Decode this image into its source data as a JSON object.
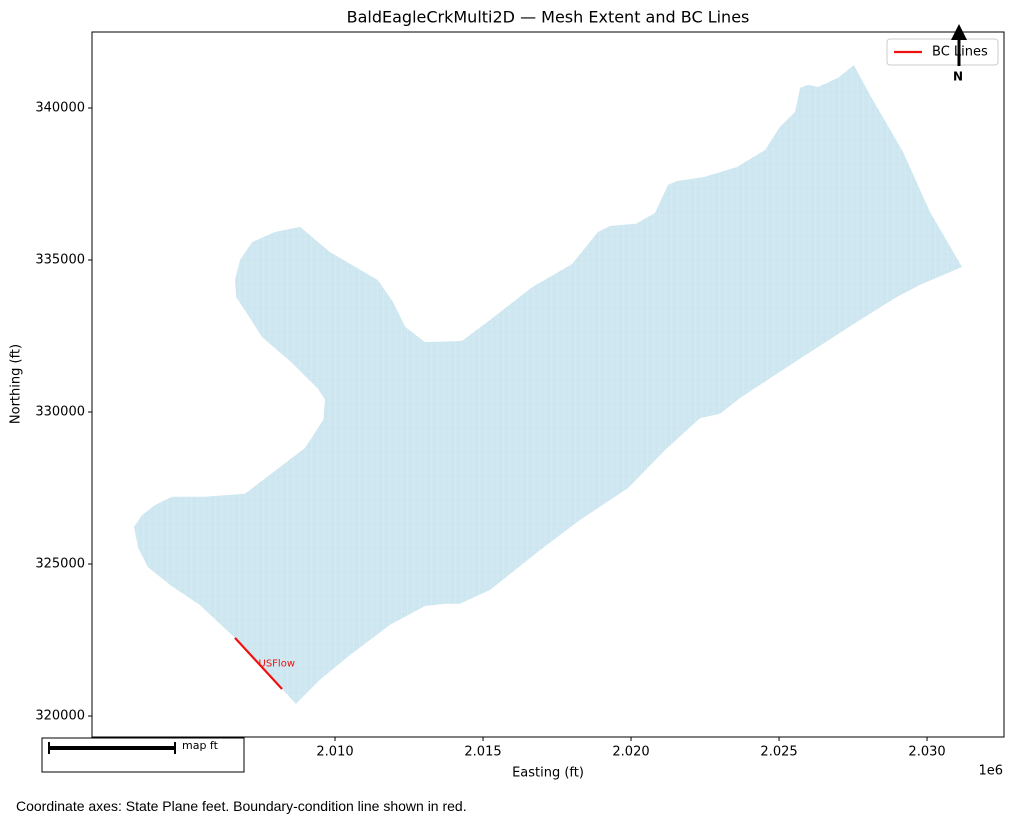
{
  "chart_data": {
    "type": "map",
    "title": "BaldEagleCrkMulti2D — Mesh Extent and BC Lines",
    "x_label": "Easting (ft)",
    "y_label": "Northing (ft)",
    "x_offset_label": "1e6",
    "xlim": [
      2001790,
      2032600
    ],
    "ylim": [
      319310,
      342500
    ],
    "xticks": [
      {
        "value": 2010000,
        "label": "2.010"
      },
      {
        "value": 2015000,
        "label": "2.015"
      },
      {
        "value": 2020000,
        "label": "2.020"
      },
      {
        "value": 2025000,
        "label": "2.025"
      },
      {
        "value": 2030000,
        "label": "2.030"
      }
    ],
    "yticks": [
      320000,
      325000,
      330000,
      335000,
      340000
    ],
    "mesh": {
      "color": "#cde6ef",
      "x": [
        2008680,
        2006620,
        2005440,
        2004430,
        2003680,
        2003350,
        2003210,
        2003480,
        2003920,
        2004490,
        2005610,
        2006960,
        2008990,
        2009600,
        2009660,
        2009430,
        2008510,
        2007530,
        2007060,
        2006660,
        2006620,
        2006790,
        2007200,
        2007970,
        2008820,
        2009830,
        2011450,
        2011960,
        2012370,
        2013040,
        2014290,
        2015240,
        2016660,
        2018010,
        2018880,
        2019290,
        2020170,
        2020810,
        2021250,
        2021550,
        2022470,
        2023580,
        2024530,
        2025030,
        2025540,
        2025710,
        2025980,
        2026320,
        2026990,
        2027530,
        2028070,
        2029190,
        2030100,
        2031180,
        2029760,
        2028920,
        2027740,
        2025540,
        2023680,
        2023010,
        2022330,
        2021150,
        2019900,
        2018280,
        2016930,
        2015240,
        2014220,
        2013720,
        2013040,
        2011860,
        2010510,
        2009490
      ],
      "y": [
        320400,
        322570,
        323650,
        324310,
        324900,
        325530,
        326220,
        326610,
        326940,
        327210,
        327210,
        327310,
        328820,
        329740,
        330400,
        330760,
        331650,
        332470,
        333190,
        333780,
        334340,
        335000,
        335590,
        335920,
        336090,
        335260,
        334340,
        333620,
        332800,
        332300,
        332340,
        333030,
        334110,
        334870,
        335920,
        336120,
        336190,
        336550,
        337470,
        337600,
        337730,
        338060,
        338620,
        339380,
        339870,
        340660,
        340760,
        340690,
        340990,
        341410,
        340430,
        338550,
        336580,
        334770,
        334180,
        333750,
        333030,
        331650,
        330460,
        329940,
        329800,
        328750,
        327500,
        326450,
        325460,
        324150,
        323690,
        323690,
        323620,
        323000,
        322010,
        321190
      ]
    },
    "bc_lines": {
      "name": "BC Lines",
      "color": "#ee1111",
      "lines": [
        {
          "label": "USFlow",
          "x": [
            2006620,
            2008210
          ],
          "y": [
            322570,
            320890
          ]
        }
      ]
    },
    "north_label": "N",
    "scale_bar_label": "map ft",
    "caption": "Coordinate axes: State Plane feet. Boundary-condition line shown in red."
  }
}
